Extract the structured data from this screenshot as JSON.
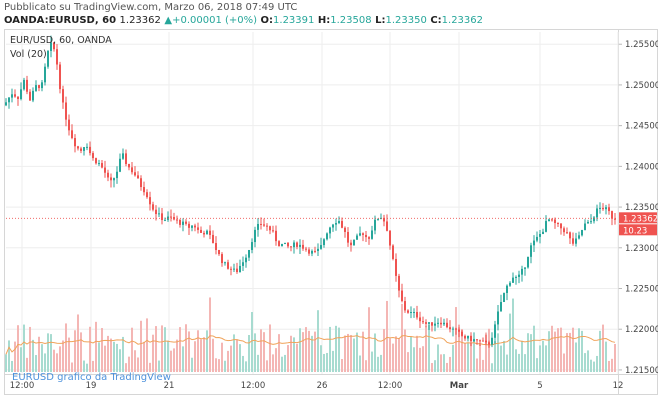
{
  "header": {
    "published": "Pubblicato su TradingView.com, Marzo 06, 2018 07:49 UTC",
    "symbol": "OANDA:EURUSD, 60",
    "last": "1.23362",
    "change": "+0.00001 (+0%)",
    "o_label": "O:",
    "o_value": "1.23391",
    "h_label": "H:",
    "h_value": "1.23508",
    "l_label": "L:",
    "l_value": "1.23350",
    "c_label": "C:",
    "c_value": "1.23362"
  },
  "overlay": {
    "title": "EUR/USD, 60, OANDA",
    "volume_label": "Vol (20)",
    "watermark": "EURUSD grafico da TradingView"
  },
  "colors": {
    "up": "#26a69a",
    "down": "#ef5350",
    "vol_up": "#a7dbd0",
    "vol_down": "#f4b6b4",
    "vol_ma": "#f0a35a",
    "price_line": "#ef5350",
    "tag": "#ef5350"
  },
  "chart_data": {
    "type": "candlestick",
    "symbol": "EUR/USD",
    "interval": "60",
    "ylim": [
      1.2145,
      1.2565
    ],
    "y_ticks": [
      "1.25500",
      "1.25000",
      "1.24500",
      "1.24000",
      "1.23500",
      "1.23000",
      "1.22500",
      "1.22000",
      "1.21500"
    ],
    "x_ticks": [
      "12:00",
      "19",
      "21",
      "12:00",
      "26",
      "12:00",
      "Mar",
      "5",
      "12"
    ],
    "x_tick_pos": [
      18,
      87,
      165,
      249,
      318,
      386,
      455,
      536,
      614
    ],
    "last_price": "1.23362",
    "last_price_value": 1.23362,
    "volume_tag": "10.23",
    "price_path": [
      [
        0,
        1.2475
      ],
      [
        8,
        1.249
      ],
      [
        14,
        1.2485
      ],
      [
        20,
        1.2505
      ],
      [
        26,
        1.2482
      ],
      [
        32,
        1.2498
      ],
      [
        38,
        1.25
      ],
      [
        44,
        1.254
      ],
      [
        48,
        1.2552
      ],
      [
        52,
        1.2535
      ],
      [
        58,
        1.248
      ],
      [
        64,
        1.245
      ],
      [
        70,
        1.243
      ],
      [
        76,
        1.2418
      ],
      [
        82,
        1.243
      ],
      [
        88,
        1.241
      ],
      [
        94,
        1.2405
      ],
      [
        100,
        1.2395
      ],
      [
        106,
        1.2378
      ],
      [
        112,
        1.239
      ],
      [
        118,
        1.2415
      ],
      [
        124,
        1.24
      ],
      [
        130,
        1.2392
      ],
      [
        136,
        1.2378
      ],
      [
        142,
        1.2368
      ],
      [
        148,
        1.235
      ],
      [
        154,
        1.234
      ],
      [
        160,
        1.2335
      ],
      [
        166,
        1.2337
      ],
      [
        172,
        1.2333
      ],
      [
        178,
        1.233
      ],
      [
        184,
        1.2325
      ],
      [
        190,
        1.2328
      ],
      [
        196,
        1.2318
      ],
      [
        202,
        1.232
      ],
      [
        208,
        1.231
      ],
      [
        214,
        1.2293
      ],
      [
        220,
        1.228
      ],
      [
        226,
        1.2275
      ],
      [
        232,
        1.227
      ],
      [
        238,
        1.2282
      ],
      [
        244,
        1.2295
      ],
      [
        250,
        1.2318
      ],
      [
        256,
        1.233
      ],
      [
        262,
        1.2327
      ],
      [
        268,
        1.232
      ],
      [
        274,
        1.2305
      ],
      [
        280,
        1.2303
      ],
      [
        286,
        1.23
      ],
      [
        292,
        1.2305
      ],
      [
        298,
        1.2302
      ],
      [
        304,
        1.2297
      ],
      [
        310,
        1.2293
      ],
      [
        316,
        1.2298
      ],
      [
        322,
        1.2318
      ],
      [
        328,
        1.233
      ],
      [
        334,
        1.2335
      ],
      [
        340,
        1.2322
      ],
      [
        346,
        1.23
      ],
      [
        352,
        1.231
      ],
      [
        358,
        1.232
      ],
      [
        364,
        1.231
      ],
      [
        370,
        1.233
      ],
      [
        376,
        1.234
      ],
      [
        382,
        1.233
      ],
      [
        388,
        1.229
      ],
      [
        394,
        1.225
      ],
      [
        400,
        1.2225
      ],
      [
        406,
        1.222
      ],
      [
        412,
        1.2218
      ],
      [
        418,
        1.221
      ],
      [
        424,
        1.2205
      ],
      [
        430,
        1.2208
      ],
      [
        436,
        1.221
      ],
      [
        442,
        1.2205
      ],
      [
        448,
        1.22
      ],
      [
        454,
        1.2195
      ],
      [
        460,
        1.219
      ],
      [
        466,
        1.2188
      ],
      [
        472,
        1.2186
      ],
      [
        478,
        1.2184
      ],
      [
        484,
        1.218
      ],
      [
        490,
        1.2198
      ],
      [
        496,
        1.223
      ],
      [
        502,
        1.225
      ],
      [
        508,
        1.2265
      ],
      [
        514,
        1.2262
      ],
      [
        520,
        1.2275
      ],
      [
        526,
        1.23
      ],
      [
        532,
        1.231
      ],
      [
        538,
        1.232
      ],
      [
        544,
        1.2335
      ],
      [
        550,
        1.233
      ],
      [
        556,
        1.2325
      ],
      [
        562,
        1.232
      ],
      [
        568,
        1.2305
      ],
      [
        574,
        1.231
      ],
      [
        580,
        1.2328
      ],
      [
        586,
        1.233
      ],
      [
        592,
        1.2345
      ],
      [
        598,
        1.235
      ],
      [
        604,
        1.2345
      ],
      [
        608,
        1.2338
      ],
      [
        612,
        1.2336
      ]
    ]
  }
}
